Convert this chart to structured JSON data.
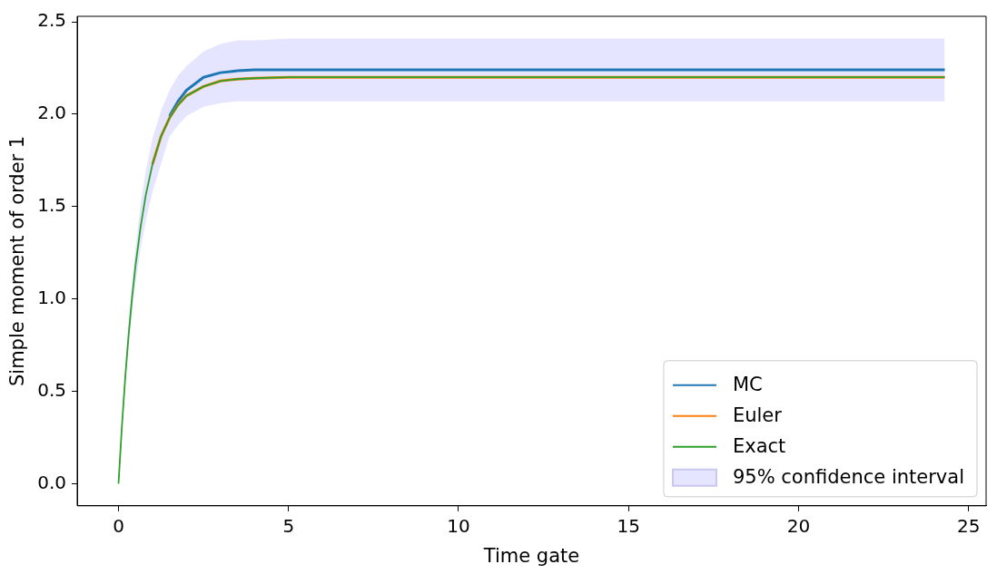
{
  "chart_data": {
    "type": "line",
    "xlabel": "Time gate",
    "ylabel": "Simple moment of order 1",
    "x": [
      0,
      0.1,
      0.2,
      0.3,
      0.4,
      0.5,
      0.65,
      0.8,
      1,
      1.25,
      1.5,
      1.75,
      2,
      2.5,
      3,
      3.5,
      4,
      5,
      6,
      8,
      24.3
    ],
    "series": [
      {
        "name": "95% confidence interval",
        "type": "area",
        "color": "#e5e5ff",
        "values": [
          null,
          null,
          null,
          null,
          null,
          null,
          null,
          null,
          null,
          null,
          null,
          null,
          null,
          null,
          null,
          null,
          null,
          null,
          null,
          null,
          null
        ],
        "lower": [
          0,
          0.29,
          0.54,
          0.75,
          0.93,
          1.08,
          1.27,
          1.42,
          1.58,
          1.73,
          1.88,
          1.94,
          1.99,
          2.04,
          2.06,
          2.07,
          2.07,
          2.07,
          2.07,
          2.07,
          2.07
        ],
        "upper": [
          0,
          0.34,
          0.63,
          0.88,
          1.09,
          1.28,
          1.51,
          1.69,
          1.87,
          2.02,
          2.13,
          2.21,
          2.26,
          2.34,
          2.38,
          2.4,
          2.4,
          2.41,
          2.41,
          2.41,
          2.41
        ]
      },
      {
        "name": "MC",
        "color": "#1f77b4",
        "values": [
          null,
          null,
          null,
          null,
          null,
          null,
          null,
          null,
          null,
          null,
          1.99,
          2.07,
          2.13,
          2.2,
          2.225,
          2.235,
          2.24,
          2.24,
          2.24,
          2.24,
          2.24
        ]
      },
      {
        "name": "Euler",
        "color": "#ff7f0e",
        "values": [
          null,
          null,
          null,
          null,
          null,
          null,
          null,
          null,
          1.73,
          1.88,
          1.98,
          2.05,
          2.1,
          2.15,
          2.18,
          2.19,
          2.195,
          2.2,
          2.2,
          2.2,
          2.2
        ]
      },
      {
        "name": "Exact",
        "color": "#2ca02c",
        "values": [
          0,
          0.31,
          0.58,
          0.81,
          1.01,
          1.18,
          1.39,
          1.56,
          1.73,
          1.88,
          1.98,
          2.05,
          2.1,
          2.15,
          2.18,
          2.19,
          2.195,
          2.2,
          2.2,
          2.2,
          2.2
        ]
      }
    ],
    "xlim": [
      -1.215,
      25.515
    ],
    "xticks": [
      0,
      5,
      10,
      15,
      20,
      25
    ],
    "ylim": [
      -0.12,
      2.53
    ],
    "yticks": [
      {
        "value": 0,
        "label": "0.0"
      },
      {
        "value": 0.5,
        "label": "0.5"
      },
      {
        "value": 1,
        "label": "1.0"
      },
      {
        "value": 1.5,
        "label": "1.5"
      },
      {
        "value": 2,
        "label": "2.0"
      },
      {
        "value": 2.5,
        "label": "2.5"
      }
    ],
    "grid": false,
    "legend": "bottom right",
    "line_style": "solid"
  }
}
